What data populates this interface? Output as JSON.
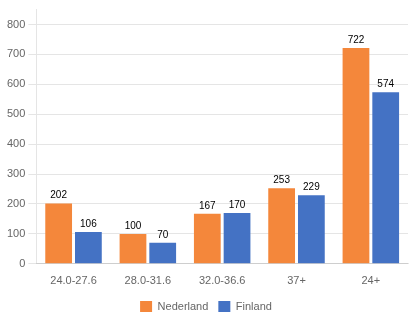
{
  "chart_data": {
    "type": "bar",
    "categories": [
      "24.0-27.6",
      "28.0-31.6",
      "32.0-36.6",
      "37+",
      "24+"
    ],
    "series": [
      {
        "name": "Nederland",
        "color": "#F4873B",
        "values": [
          202,
          100,
          167,
          253,
          722
        ]
      },
      {
        "name": "Finland",
        "color": "#4472C4",
        "values": [
          106,
          70,
          170,
          229,
          574
        ]
      }
    ],
    "ylim": [
      0,
      850
    ],
    "yticks": [
      0,
      100,
      200,
      300,
      400,
      500,
      600,
      700,
      800
    ],
    "grid": true,
    "legend": "bottom",
    "data_labels": true
  }
}
